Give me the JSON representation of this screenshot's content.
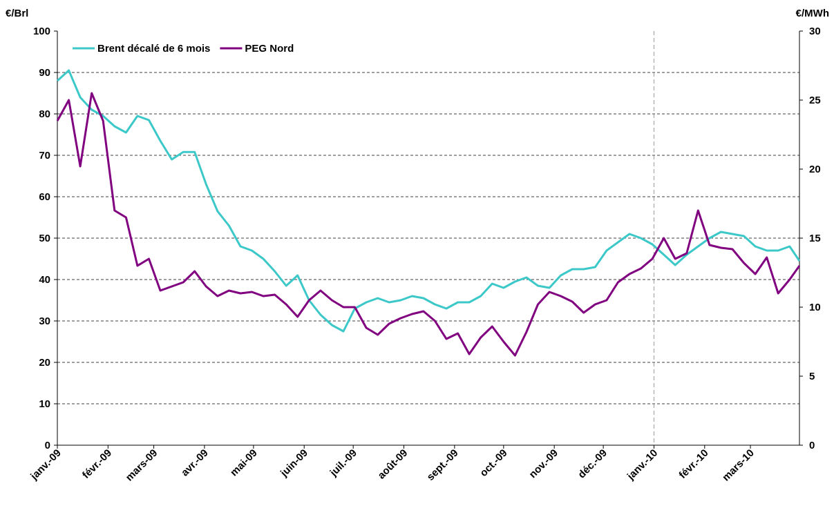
{
  "chart_data": {
    "type": "line",
    "y_label": "€/Brl",
    "y2_label": "€/MWh",
    "x": [
      0,
      7,
      14,
      21,
      28,
      35,
      42,
      49,
      56,
      63,
      70,
      77,
      84,
      91,
      98,
      105,
      112,
      119,
      126,
      133,
      140,
      147,
      154,
      161,
      168,
      175,
      182,
      189,
      196,
      203,
      210,
      217,
      224,
      231,
      238,
      245,
      252,
      259,
      266,
      273,
      280,
      287,
      294,
      301,
      308,
      315,
      322,
      329,
      336,
      343,
      350,
      357,
      364,
      371,
      378,
      385,
      392,
      399,
      406,
      413,
      420,
      427,
      434,
      441,
      448,
      454
    ],
    "xlim": [
      0,
      454
    ],
    "xticks": [
      {
        "value": 0,
        "label": "janv.-09"
      },
      {
        "value": 31,
        "label": "févr.-09"
      },
      {
        "value": 59,
        "label": "mars-09"
      },
      {
        "value": 90,
        "label": "avr.-09"
      },
      {
        "value": 120,
        "label": "mai-09"
      },
      {
        "value": 151,
        "label": "juin-09"
      },
      {
        "value": 181,
        "label": "juil.-09"
      },
      {
        "value": 212,
        "label": "août-09"
      },
      {
        "value": 243,
        "label": "sept.-09"
      },
      {
        "value": 273,
        "label": "oct.-09"
      },
      {
        "value": 304,
        "label": "nov.-09"
      },
      {
        "value": 334,
        "label": "déc.-09"
      },
      {
        "value": 365,
        "label": "janv.-10"
      },
      {
        "value": 396,
        "label": "févr.-10"
      },
      {
        "value": 424,
        "label": "mars-10"
      }
    ],
    "ylim": [
      0,
      100
    ],
    "yticks": [
      0,
      10,
      20,
      30,
      40,
      50,
      60,
      70,
      80,
      90,
      100
    ],
    "y2lim": [
      0,
      30
    ],
    "y2ticks": [
      0,
      5,
      10,
      15,
      20,
      25,
      30
    ],
    "grid": true,
    "vline": 365,
    "legend": "top-left",
    "series": [
      {
        "name": "Brent décalé de 6 mois",
        "color": "#3cc8c8",
        "values": [
          88,
          90.5,
          84,
          81,
          79.5,
          77,
          75.5,
          79.5,
          78.5,
          73.5,
          69,
          70.8,
          70.8,
          63,
          56.5,
          53,
          48,
          47,
          45,
          42,
          38.5,
          41,
          35,
          31.5,
          29,
          27.5,
          33,
          34.5,
          35.5,
          34.5,
          35,
          36,
          35.5,
          34,
          33,
          34.5,
          34.5,
          36,
          39,
          38,
          39.5,
          40.5,
          38.5,
          38,
          41,
          42.5,
          42.5,
          43,
          47,
          49,
          51,
          50,
          48.5,
          46,
          43.5,
          46,
          48,
          50,
          51.5,
          51,
          50.5,
          48,
          47,
          47,
          48,
          44.5
        ]
      },
      {
        "name": "PEG Nord",
        "color": "#800080",
        "axis": "y2",
        "values": [
          23.5,
          25,
          20.2,
          25.5,
          23.5,
          17,
          16.5,
          13,
          13.5,
          11.2,
          11.5,
          11.8,
          12.6,
          11.5,
          10.8,
          11.2,
          11,
          11.1,
          10.8,
          10.9,
          10.2,
          9.3,
          10.5,
          11.2,
          10.5,
          10,
          10,
          8.5,
          8,
          8.8,
          9.2,
          9.5,
          9.7,
          9,
          7.7,
          8.1,
          6.6,
          7.8,
          8.6,
          7.5,
          6.5,
          8.2,
          10.2,
          11.1,
          10.8,
          10.4,
          9.6,
          10.2,
          10.5,
          11.8,
          12.4,
          12.8,
          13.5,
          15,
          13.5,
          13.9,
          17,
          14.5,
          14.3,
          14.2,
          13.2,
          12.4,
          13.6,
          11,
          12,
          13
        ]
      }
    ]
  }
}
